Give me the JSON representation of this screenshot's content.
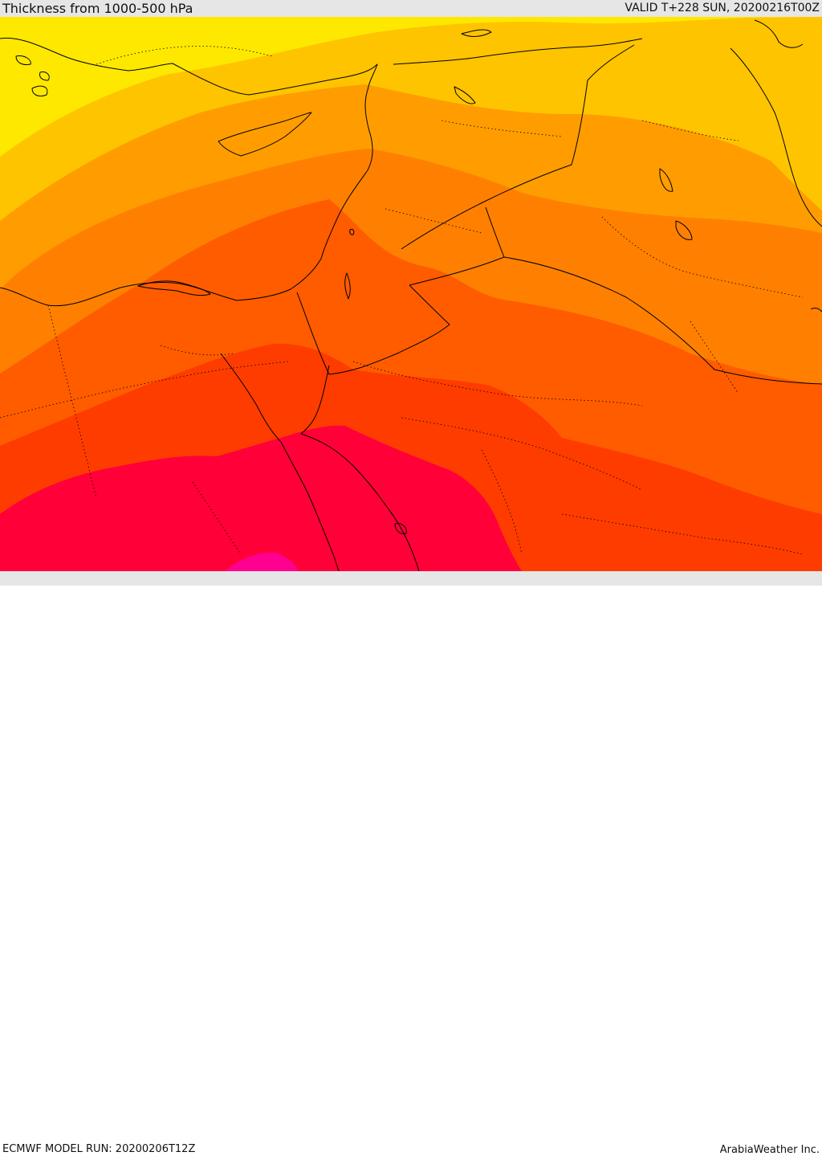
{
  "header": {
    "title": "Thickness from 1000-500 hPa",
    "valid": "VALID T+228 SUN, 20200216T00Z"
  },
  "footer": {
    "model_run": "ECMWF MODEL RUN: 20200206T12Z",
    "credit": "ArabiaWeather Inc."
  },
  "colors": {
    "bar_bg": "#e6e6e6",
    "band_yellow": "#ffe800",
    "band_gold": "#ffc400",
    "band_amber": "#ff9d00",
    "band_orange": "#ff8000",
    "band_dark_orange": "#ff5c00",
    "band_red_orange": "#ff3c00",
    "band_crimson": "#ff0038",
    "band_magenta": "#ff0090",
    "coastline": "#000000"
  }
}
